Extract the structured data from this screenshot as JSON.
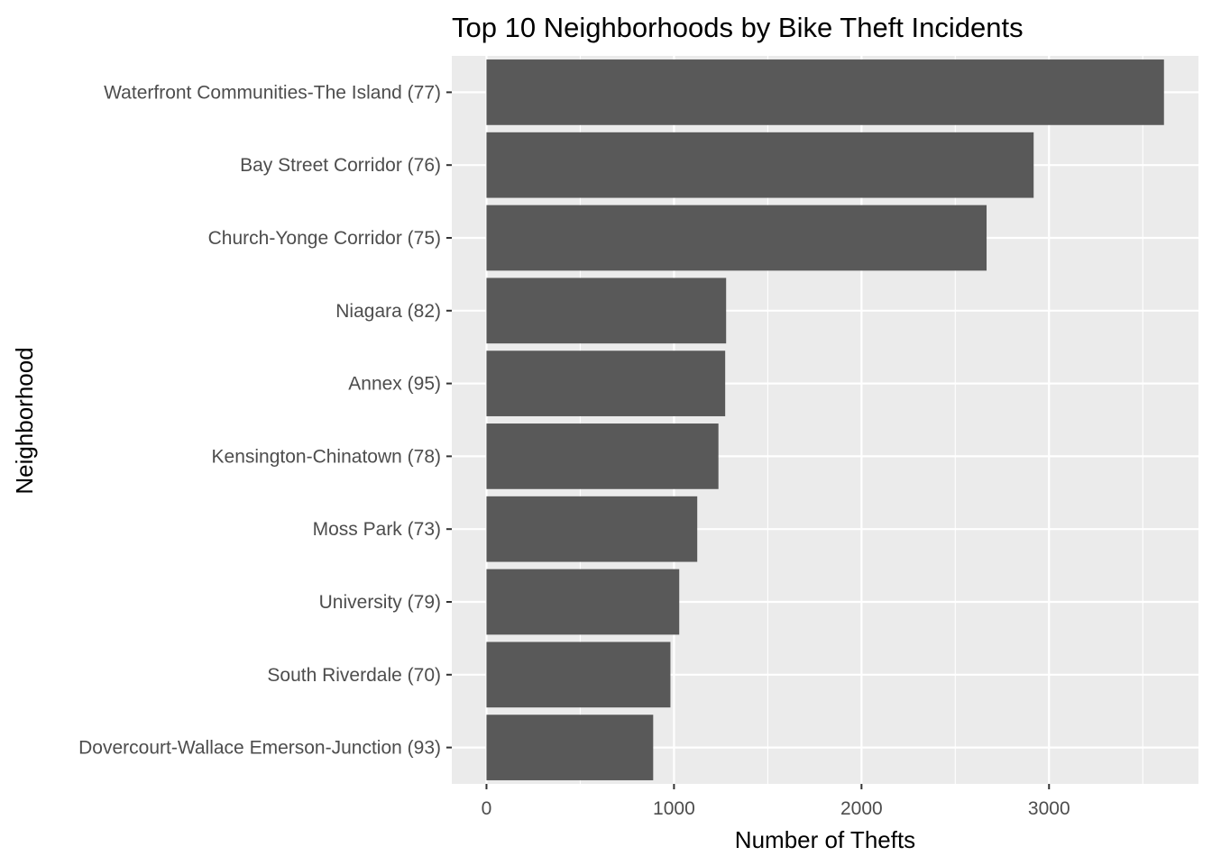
{
  "chart_data": {
    "type": "bar",
    "orientation": "horizontal",
    "title": "Top 10 Neighborhoods by Bike Theft Incidents",
    "xlabel": "Number of Thefts",
    "ylabel": "Neighborhood",
    "categories": [
      "Waterfront Communities-The Island (77)",
      "Bay Street Corridor (76)",
      "Church-Yonge Corridor (75)",
      "Niagara (82)",
      "Annex (95)",
      "Kensington-Chinatown (78)",
      "Moss Park (73)",
      "University (79)",
      "South Riverdale (70)",
      "Dovercourt-Wallace Emerson-Junction (93)"
    ],
    "values": [
      3613,
      2918,
      2667,
      1278,
      1273,
      1237,
      1124,
      1028,
      981,
      889
    ],
    "xlim": [
      -185,
      3797
    ],
    "xticks": [
      0,
      1000,
      2000,
      3000
    ],
    "xtick_labels": [
      "0",
      "1000",
      "2000",
      "3000"
    ],
    "grid": true,
    "legend": "none",
    "colors": {
      "bar": "#595959",
      "panel": "#ebebeb",
      "grid": "#ffffff",
      "tick": "#333333",
      "tick_label": "#4d4d4d"
    }
  }
}
